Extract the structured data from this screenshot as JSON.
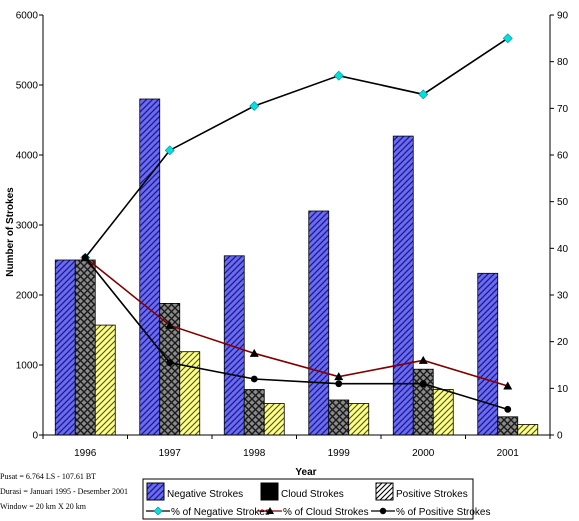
{
  "chart_data": {
    "type": "bar",
    "categories": [
      "1996",
      "1997",
      "1998",
      "1999",
      "2000",
      "2001"
    ],
    "xlabel": "Year",
    "ylabel": "Number of Strokes",
    "ylim": [
      0,
      6000
    ],
    "y2lim": [
      0,
      90
    ],
    "y_ticks": [
      "0",
      "1000",
      "2000",
      "3000",
      "4000",
      "5000",
      "6000"
    ],
    "y2_ticks": [
      "0",
      "10",
      "20",
      "30",
      "40",
      "50",
      "60",
      "70",
      "80",
      "90"
    ],
    "bar_series": [
      {
        "name": "Negative Strokes",
        "values": [
          2500,
          4800,
          2560,
          3200,
          4270,
          2310
        ]
      },
      {
        "name": "Cloud Strokes",
        "values": [
          2500,
          1880,
          650,
          500,
          940,
          260
        ]
      },
      {
        "name": "Positive Strokes",
        "values": [
          1570,
          1190,
          450,
          450,
          650,
          150
        ]
      }
    ],
    "line_series": [
      {
        "name": "% of Negative Strokes",
        "values": [
          38,
          61,
          70.5,
          77,
          73,
          85
        ]
      },
      {
        "name": "% of Cloud Strokes",
        "values": [
          38,
          23.5,
          17.5,
          12.5,
          16,
          10.5
        ]
      },
      {
        "name": "% of Positive Strokes",
        "values": [
          38,
          15.5,
          12,
          11,
          11,
          5.5
        ]
      }
    ],
    "colors": {
      "negative_bar": "#6b6bf0",
      "cloud_bar": "#808080",
      "positive_bar": "#ffff80",
      "negative_line": "#000000",
      "negative_marker": "#00e0e0",
      "cloud_line": "#800000",
      "cloud_marker": "#000000",
      "positive_line": "#000000",
      "positive_marker": "#000000"
    },
    "grid": false,
    "legend_position": "bottom"
  },
  "notes": [
    "Pusat    = 6.764 LS - 107.61 BT",
    "Durasi   = Januari 1995 - Desember 2001",
    "Window   = 20 km X 20 km"
  ]
}
